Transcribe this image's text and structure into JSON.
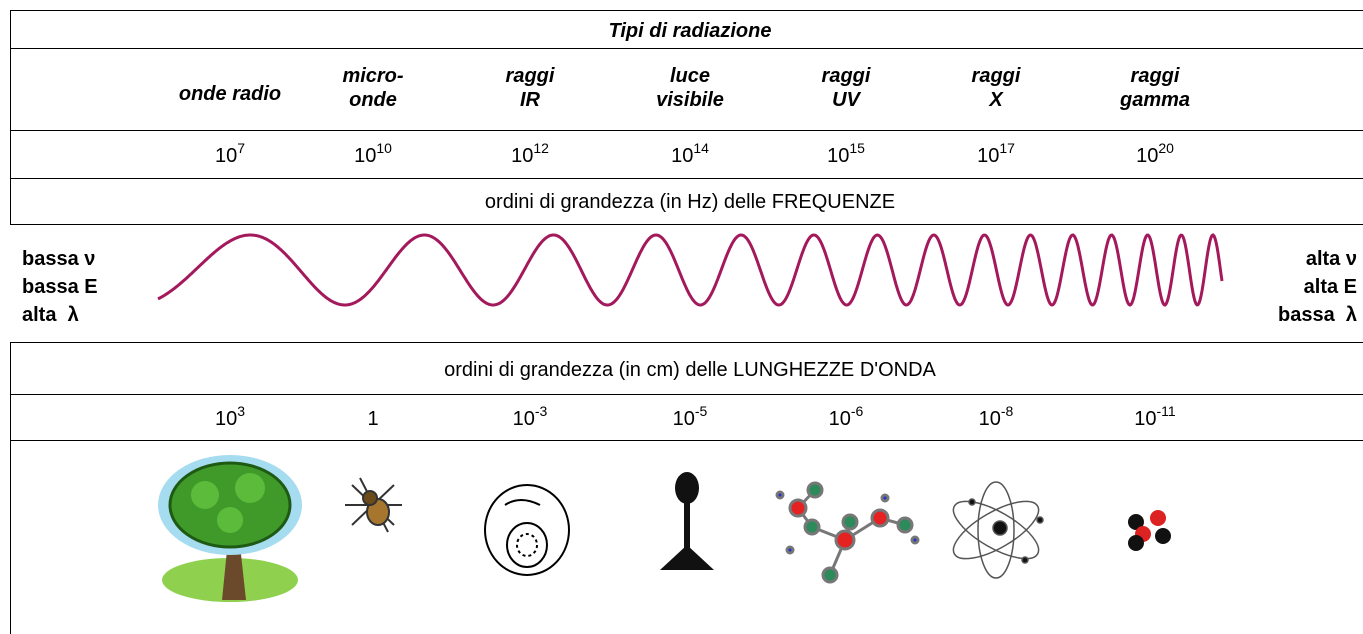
{
  "header": {
    "title": "Tipi di radiazione"
  },
  "types": [
    [
      "onde radio"
    ],
    [
      "micro-",
      "onde"
    ],
    [
      "raggi",
      "IR"
    ],
    [
      "luce",
      "visibile"
    ],
    [
      "raggi",
      "UV"
    ],
    [
      "raggi",
      "X"
    ],
    [
      "raggi",
      "gamma"
    ]
  ],
  "frequencies": [
    {
      "base": "10",
      "exp": "7"
    },
    {
      "base": "10",
      "exp": "10"
    },
    {
      "base": "10",
      "exp": "12"
    },
    {
      "base": "10",
      "exp": "14"
    },
    {
      "base": "10",
      "exp": "15"
    },
    {
      "base": "10",
      "exp": "17"
    },
    {
      "base": "10",
      "exp": "20"
    }
  ],
  "frequency_caption": "ordini di grandezza (in Hz) delle FREQUENZE",
  "left_labels": [
    "bassa ν",
    "bassa E",
    "alta  λ"
  ],
  "right_labels": [
    "alta ν",
    "alta E",
    "bassa  λ"
  ],
  "wavelength_caption": "ordini di grandezza (in cm) delle LUNGHEZZE D'ONDA",
  "wavelengths": [
    {
      "base": "10",
      "exp": "3"
    },
    {
      "base": "1"
    },
    {
      "base": "10",
      "exp": "-3"
    },
    {
      "base": "10",
      "exp": "-5"
    },
    {
      "base": "10",
      "exp": "-6"
    },
    {
      "base": "10",
      "exp": "-8"
    },
    {
      "base": "10",
      "exp": "-11"
    }
  ]
}
